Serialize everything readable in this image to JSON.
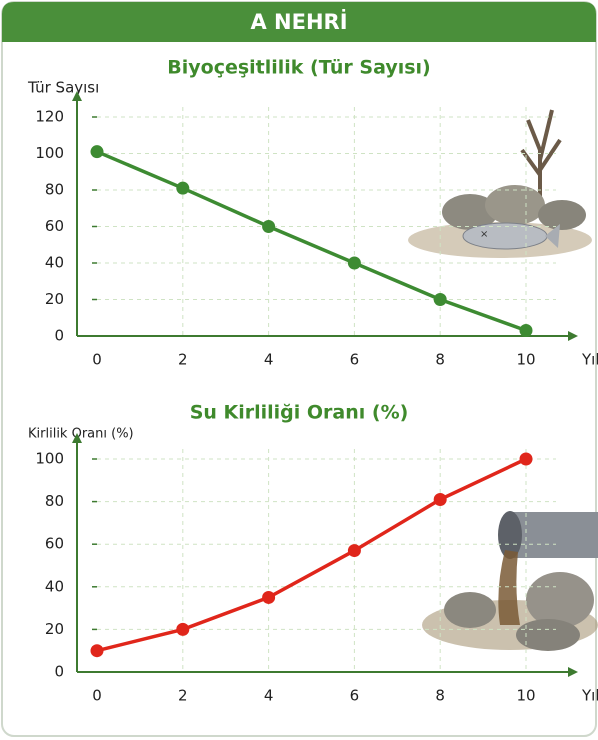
{
  "header": {
    "title": "A NEHRİ"
  },
  "chart_data": [
    {
      "type": "line",
      "title": "Biyoçeşitlilik (Tür Sayısı)",
      "y_label": "Tür Sayısı",
      "x_label": "Yıl",
      "x": [
        0,
        2,
        4,
        6,
        8,
        10
      ],
      "xlim": [
        0,
        10
      ],
      "xticks": [
        0,
        2,
        4,
        6,
        8,
        10
      ],
      "ylim": [
        0,
        120
      ],
      "yticks": [
        0,
        20,
        40,
        60,
        80,
        100,
        120
      ],
      "grid": true,
      "series": [
        {
          "name": "Tür Sayısı",
          "color": "#3d8b32",
          "values": [
            101,
            81,
            60,
            40,
            20,
            3
          ]
        }
      ]
    },
    {
      "type": "line",
      "title": "Su Kirliliği Oranı (%)",
      "y_label": "Kirlilik Oranı (%)",
      "x_label": "Yıl",
      "x": [
        0,
        2,
        4,
        6,
        8,
        10
      ],
      "xlim": [
        0,
        10
      ],
      "xticks": [
        0,
        2,
        4,
        6,
        8,
        10
      ],
      "ylim": [
        0,
        100
      ],
      "yticks": [
        0,
        20,
        40,
        60,
        80,
        100
      ],
      "grid": true,
      "series": [
        {
          "name": "Kirlilik Oranı",
          "color": "#e0261b",
          "values": [
            10,
            20,
            35,
            57,
            81,
            100
          ]
        }
      ]
    }
  ]
}
